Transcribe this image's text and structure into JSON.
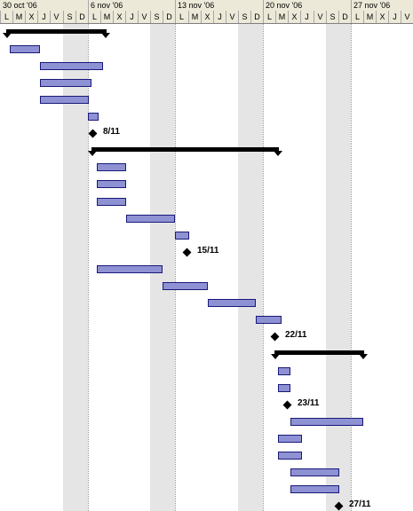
{
  "header": {
    "weeks": [
      "30 oct '06",
      "6 nov '06",
      "13 nov '06",
      "20 nov '06",
      "27 nov '06"
    ],
    "days": [
      "L",
      "M",
      "X",
      "J",
      "V",
      "S",
      "D",
      "L",
      "M",
      "X",
      "J",
      "V",
      "S",
      "D",
      "L",
      "M",
      "X",
      "J",
      "V",
      "S",
      "D",
      "L",
      "M",
      "X",
      "J",
      "V",
      "S",
      "D",
      "L",
      "M",
      "X",
      "J",
      "V"
    ]
  },
  "tasks": [
    {
      "type": "summary",
      "start": 0.5,
      "end": 8.5
    },
    {
      "type": "task",
      "start": 0.8,
      "end": 3.2
    },
    {
      "type": "task",
      "start": 3.2,
      "end": 8.2
    },
    {
      "type": "task",
      "start": 3.2,
      "end": 7.3
    },
    {
      "type": "task",
      "start": 3.2,
      "end": 7.1
    },
    {
      "type": "task",
      "start": 7.0,
      "end": 7.9
    },
    {
      "type": "milestone",
      "at": 7.4,
      "label": "8/11"
    },
    {
      "type": "summary",
      "start": 7.3,
      "end": 22.3
    },
    {
      "type": "task",
      "start": 7.7,
      "end": 10.1
    },
    {
      "type": "task",
      "start": 7.7,
      "end": 10.1
    },
    {
      "type": "task",
      "start": 7.7,
      "end": 10.1
    },
    {
      "type": "task",
      "start": 10.1,
      "end": 14.0
    },
    {
      "type": "task",
      "start": 14.0,
      "end": 15.1
    },
    {
      "type": "milestone",
      "at": 14.9,
      "label": "15/11"
    },
    {
      "type": "task",
      "start": 7.7,
      "end": 13.0
    },
    {
      "type": "task",
      "start": 13.0,
      "end": 16.6
    },
    {
      "type": "task",
      "start": 16.6,
      "end": 20.4
    },
    {
      "type": "task",
      "start": 20.4,
      "end": 22.5
    },
    {
      "type": "milestone",
      "at": 21.9,
      "label": "22/11"
    },
    {
      "type": "summary",
      "start": 21.9,
      "end": 29.1
    },
    {
      "type": "task",
      "start": 22.2,
      "end": 23.2
    },
    {
      "type": "task",
      "start": 22.2,
      "end": 23.2
    },
    {
      "type": "milestone",
      "at": 22.9,
      "label": "23/11"
    },
    {
      "type": "task",
      "start": 23.2,
      "end": 29.0
    },
    {
      "type": "task",
      "start": 22.2,
      "end": 24.1
    },
    {
      "type": "task",
      "start": 22.2,
      "end": 24.1
    },
    {
      "type": "task",
      "start": 23.2,
      "end": 27.1
    },
    {
      "type": "task",
      "start": 23.2,
      "end": 27.1
    },
    {
      "type": "milestone",
      "at": 27.0,
      "label": "27/11"
    }
  ],
  "colors": {
    "task_fill": "#b4b8e8",
    "task_border": "#1a1a7a",
    "summary": "#000000",
    "milestone": "#000000",
    "header_bg": "#ece9d8",
    "weekend": "#d0d0d0"
  }
}
